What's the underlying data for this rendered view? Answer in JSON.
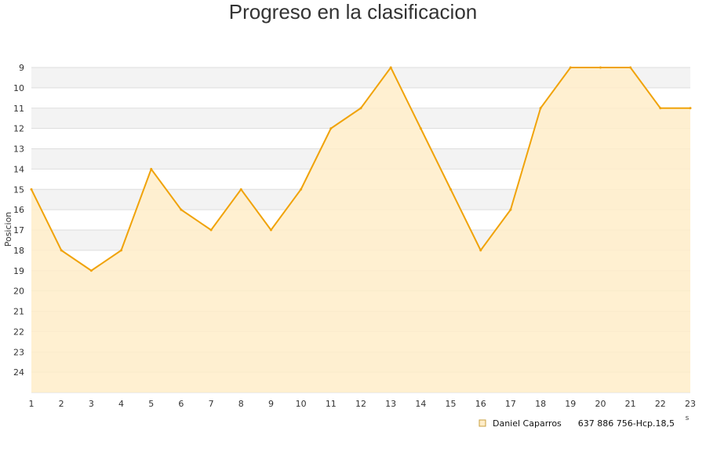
{
  "chart_data": {
    "type": "area",
    "title": "Progreso en la clasificacion",
    "xlabel": "s",
    "ylabel": "Posicion",
    "x": [
      1,
      2,
      3,
      4,
      5,
      6,
      7,
      8,
      9,
      10,
      11,
      12,
      13,
      14,
      15,
      16,
      17,
      18,
      19,
      20,
      21,
      22,
      23
    ],
    "series": [
      {
        "name": "Daniel Caparros      637 886 756-Hcp.18,5",
        "values": [
          15,
          18,
          19,
          18,
          14,
          16,
          17,
          15,
          17,
          15,
          12,
          11,
          9,
          12,
          15,
          18,
          16,
          11,
          9,
          9,
          9,
          11,
          11
        ],
        "color": "#f0a30a"
      }
    ],
    "ylim": [
      9,
      25
    ],
    "y_inverted": true,
    "y_ticks": [
      9,
      10,
      11,
      12,
      13,
      14,
      15,
      16,
      17,
      18,
      19,
      20,
      21,
      22,
      23,
      24
    ],
    "grid": true,
    "legend_position": "bottom-right",
    "colors": {
      "line": "#f0a30a",
      "fill": "#ffedc9",
      "band_light": "#f3f3f3",
      "band_white": "#ffffff",
      "grid": "#dedede"
    }
  }
}
